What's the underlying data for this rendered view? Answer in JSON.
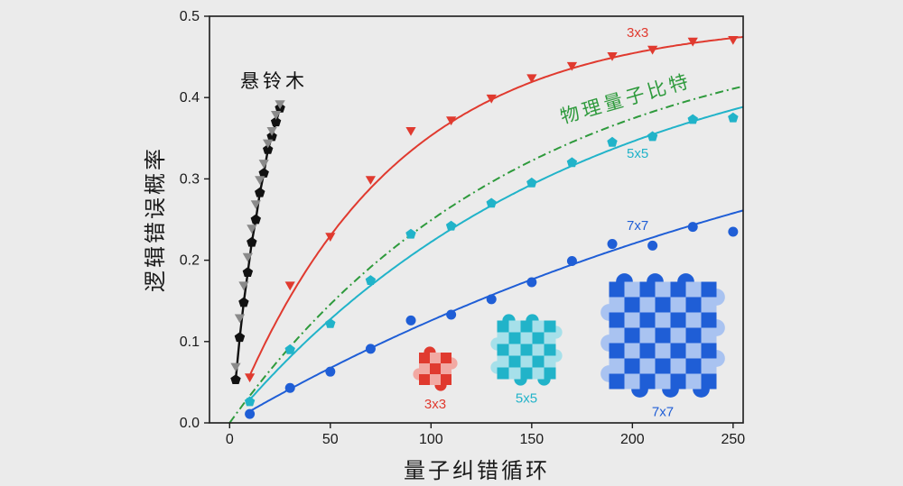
{
  "chart_data": {
    "type": "line",
    "xlabel": "量子纠错循环",
    "ylabel": "逻辑错误概率",
    "xlim": [
      -10,
      255
    ],
    "ylim": [
      0,
      0.5
    ],
    "xticks": [
      "0",
      "50",
      "100",
      "150",
      "200",
      "250"
    ],
    "yticks": [
      "0.0",
      "0.1",
      "0.2",
      "0.3",
      "0.4",
      "0.5"
    ],
    "grid": false,
    "series": [
      {
        "name": "悬铃木",
        "color": "#111111",
        "marker": "pentagon",
        "x": [
          3,
          5,
          7,
          9,
          11,
          13,
          15,
          17,
          19,
          21,
          23,
          25
        ],
        "y": [
          0.053,
          0.105,
          0.148,
          0.185,
          0.222,
          0.25,
          0.283,
          0.307,
          0.336,
          0.352,
          0.37,
          0.387
        ]
      },
      {
        "name": "悬铃木-灰",
        "color": "#8a8a8a",
        "marker": "triangle-down",
        "x": [
          3,
          5,
          7,
          9,
          11,
          13,
          15,
          17,
          19,
          21,
          23,
          25
        ],
        "y": [
          0.07,
          0.13,
          0.17,
          0.205,
          0.24,
          0.27,
          0.3,
          0.32,
          0.345,
          0.36,
          0.38,
          0.393
        ]
      },
      {
        "name": "3x3",
        "color": "#e03a2f",
        "marker": "triangle-down",
        "x": [
          10,
          30,
          50,
          70,
          90,
          110,
          130,
          150,
          170,
          190,
          210,
          230,
          250
        ],
        "y": [
          0.057,
          0.17,
          0.23,
          0.3,
          0.36,
          0.373,
          0.4,
          0.425,
          0.44,
          0.452,
          0.46,
          0.47,
          0.472
        ],
        "fit": {
          "a": 0.495,
          "tau": 80
        }
      },
      {
        "name": "5x5",
        "color": "#21b3c9",
        "marker": "pentagon",
        "x": [
          10,
          30,
          50,
          70,
          90,
          110,
          130,
          150,
          170,
          190,
          210,
          230,
          250
        ],
        "y": [
          0.026,
          0.09,
          0.122,
          0.175,
          0.232,
          0.242,
          0.27,
          0.295,
          0.32,
          0.345,
          0.352,
          0.373,
          0.375
        ],
        "fit": {
          "a": 0.5,
          "tau": 170
        }
      },
      {
        "name": "7x7",
        "color": "#1f5ed6",
        "marker": "circle",
        "x": [
          10,
          30,
          50,
          70,
          90,
          110,
          130,
          150,
          170,
          190,
          210,
          230,
          250
        ],
        "y": [
          0.011,
          0.043,
          0.063,
          0.091,
          0.126,
          0.133,
          0.152,
          0.173,
          0.199,
          0.22,
          0.218,
          0.241,
          0.235
        ],
        "fit": {
          "a": 0.5,
          "tau": 345
        }
      },
      {
        "name": "物理量子比特",
        "color": "#2e9a3c",
        "marker": "none",
        "style": "dash-dot",
        "fit": {
          "a": 0.5,
          "tau": 145
        }
      }
    ],
    "annotations": {
      "sycamore": "悬铃木",
      "physical": "物理量子比特",
      "label_3x3": "3x3",
      "label_5x5": "5x5",
      "label_7x7": "7x7"
    },
    "insets": [
      {
        "label": "3x3",
        "size": 3,
        "dark": "#e03a2f",
        "light": "#f2a9a3"
      },
      {
        "label": "5x5",
        "size": 5,
        "dark": "#21b3c9",
        "light": "#a6e0ea"
      },
      {
        "label": "7x7",
        "size": 7,
        "dark": "#1f5ed6",
        "light": "#a9c3f1"
      }
    ]
  }
}
